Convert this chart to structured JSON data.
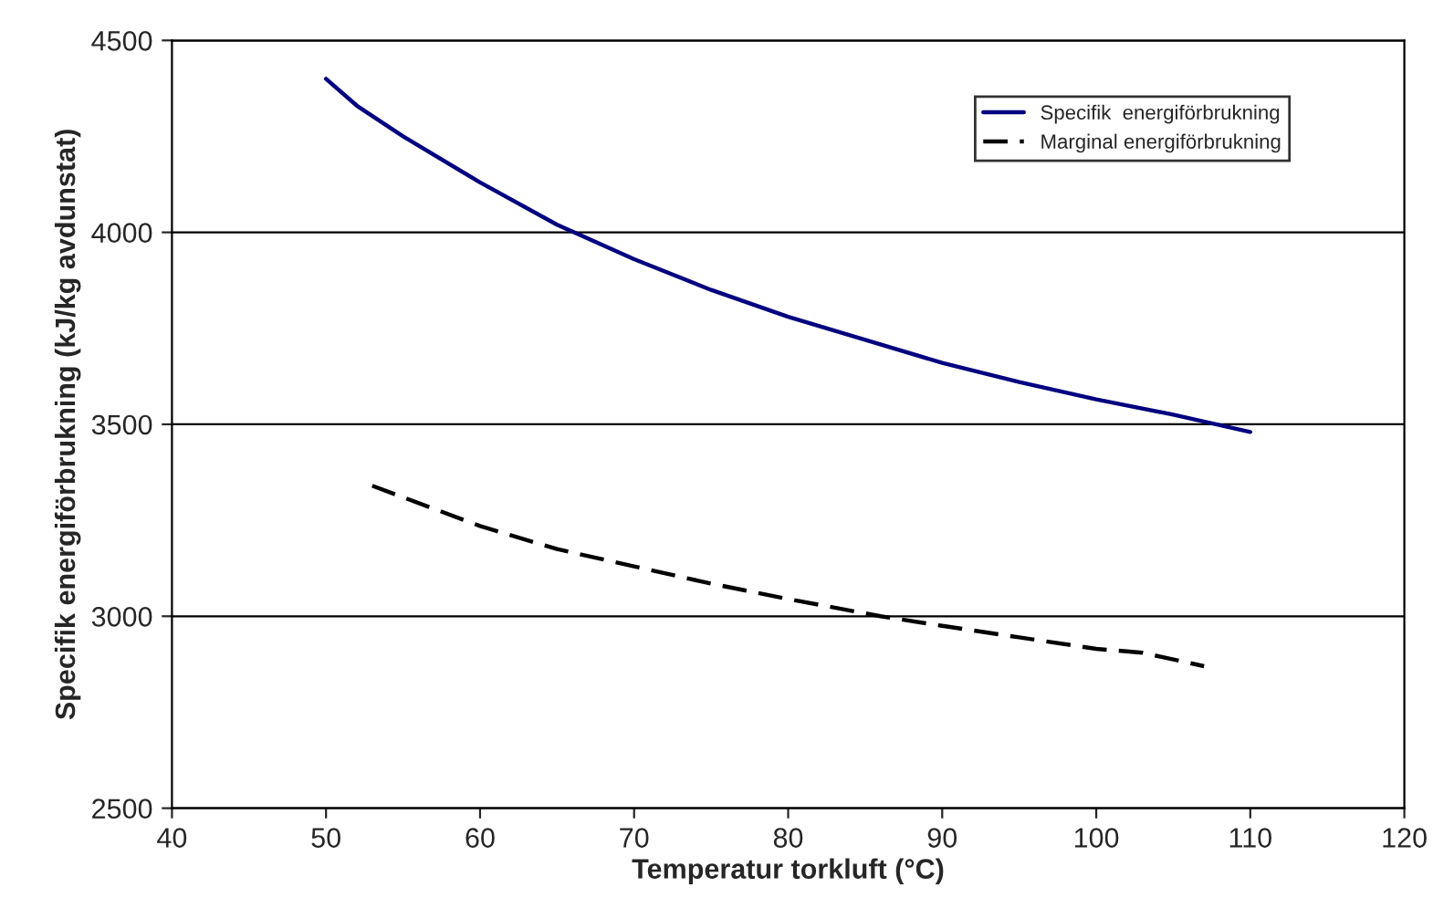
{
  "chart_data": {
    "type": "line",
    "xlabel": "Temperatur torkluft (°C)",
    "ylabel": "Specifik energiförbrukning (kJ/kg avdunstat)",
    "xlim": [
      40,
      120
    ],
    "xticks": [
      40,
      50,
      60,
      70,
      80,
      90,
      100,
      110,
      120
    ],
    "ylim": [
      2500,
      4500
    ],
    "yticks": [
      2500,
      3000,
      3500,
      4000,
      4500
    ],
    "grid": "y",
    "legend": "top right",
    "series": [
      {
        "name": "Specifik  energiförbrukning",
        "color": "#000080",
        "line_style": "solid",
        "x": [
          50,
          52,
          55,
          60,
          65,
          70,
          75,
          80,
          85,
          90,
          95,
          100,
          105,
          110
        ],
        "values": [
          4400,
          4330,
          4250,
          4130,
          4020,
          3930,
          3850,
          3780,
          3720,
          3660,
          3610,
          3565,
          3525,
          3480
        ]
      },
      {
        "name": "Marginal energiförbrukning",
        "color": "#000000",
        "line_style": "dashed",
        "x": [
          53,
          60,
          65,
          70,
          75,
          80,
          86,
          90,
          95,
          100,
          103,
          107
        ],
        "values": [
          3340,
          3235,
          3175,
          3130,
          3085,
          3045,
          3000,
          2975,
          2945,
          2915,
          2905,
          2870
        ]
      }
    ]
  }
}
